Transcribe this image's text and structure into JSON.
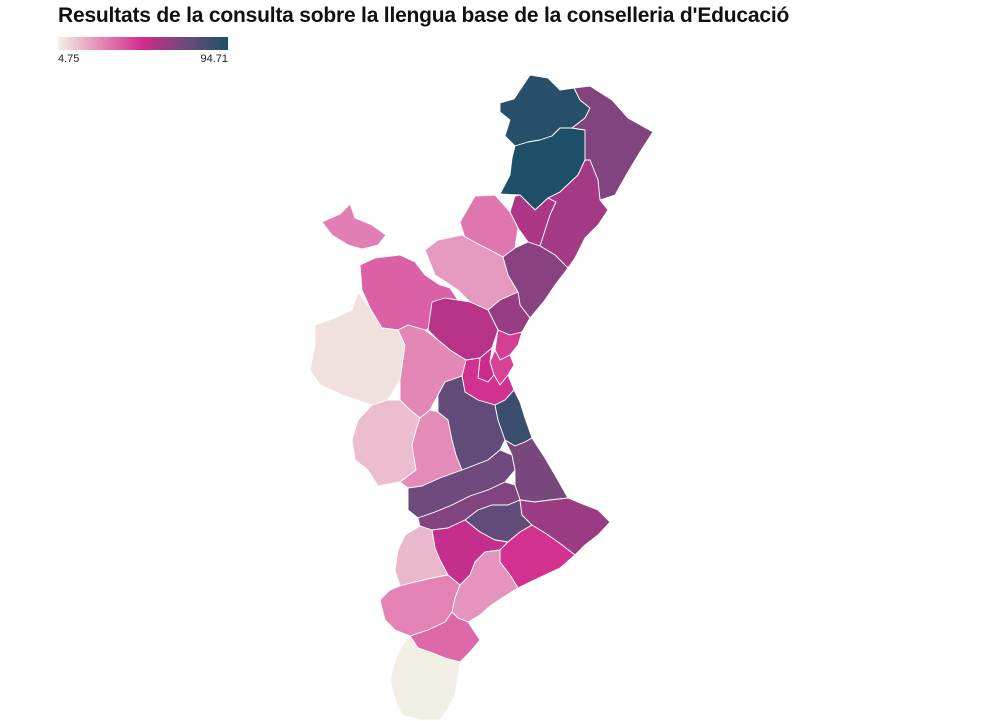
{
  "title": "Resultats de la consulta sobre la llengua base de la conselleria d'Educació",
  "legend": {
    "min_label": "4.75",
    "max_label": "94.71",
    "min_value": 4.75,
    "max_value": 94.71,
    "color_stops": [
      "#f2f0e6",
      "#e48ab8",
      "#d22a8c",
      "#6e4a7c",
      "#1d5068"
    ]
  },
  "map_data": {
    "type": "choropleth",
    "regions": [
      {
        "id": "els-ports",
        "value": 92
      },
      {
        "id": "alt-maestrat",
        "value": 94.71
      },
      {
        "id": "baix-maestrat",
        "value": 68
      },
      {
        "id": "alcalaten",
        "value": 58
      },
      {
        "id": "plana-alta",
        "value": 60
      },
      {
        "id": "alt-millars",
        "value": 32
      },
      {
        "id": "rincon-de-ademuz",
        "value": 30
      },
      {
        "id": "alt-palancia",
        "value": 24
      },
      {
        "id": "plana-baixa",
        "value": 66
      },
      {
        "id": "serrans",
        "value": 37
      },
      {
        "id": "camp-de-morvedre",
        "value": 63
      },
      {
        "id": "camp-de-turia",
        "value": 56
      },
      {
        "id": "horta-nord",
        "value": 45
      },
      {
        "id": "valencia",
        "value": 44
      },
      {
        "id": "horta-sud",
        "value": 52
      },
      {
        "id": "horta-oest",
        "value": 48
      },
      {
        "id": "plana-utiel-requena",
        "value": 8
      },
      {
        "id": "foia-de-bunyol",
        "value": 28
      },
      {
        "id": "valle-de-cofrentes",
        "value": 16
      },
      {
        "id": "canal-de-navarres",
        "value": 27
      },
      {
        "id": "ribera-alta",
        "value": 76
      },
      {
        "id": "ribera-baixa",
        "value": 86
      },
      {
        "id": "costera",
        "value": 72
      },
      {
        "id": "safor",
        "value": 70
      },
      {
        "id": "vall-dalbaida",
        "value": 68
      },
      {
        "id": "comtat",
        "value": 76
      },
      {
        "id": "marina-alta",
        "value": 62
      },
      {
        "id": "alcoia",
        "value": 53
      },
      {
        "id": "marina-baixa",
        "value": 48
      },
      {
        "id": "alt-vinalopo",
        "value": 17
      },
      {
        "id": "vinalopo-mitja",
        "value": 29
      },
      {
        "id": "alacanti",
        "value": 25
      },
      {
        "id": "baix-vinalopo",
        "value": 35
      },
      {
        "id": "baix-segura",
        "value": 5
      }
    ]
  }
}
